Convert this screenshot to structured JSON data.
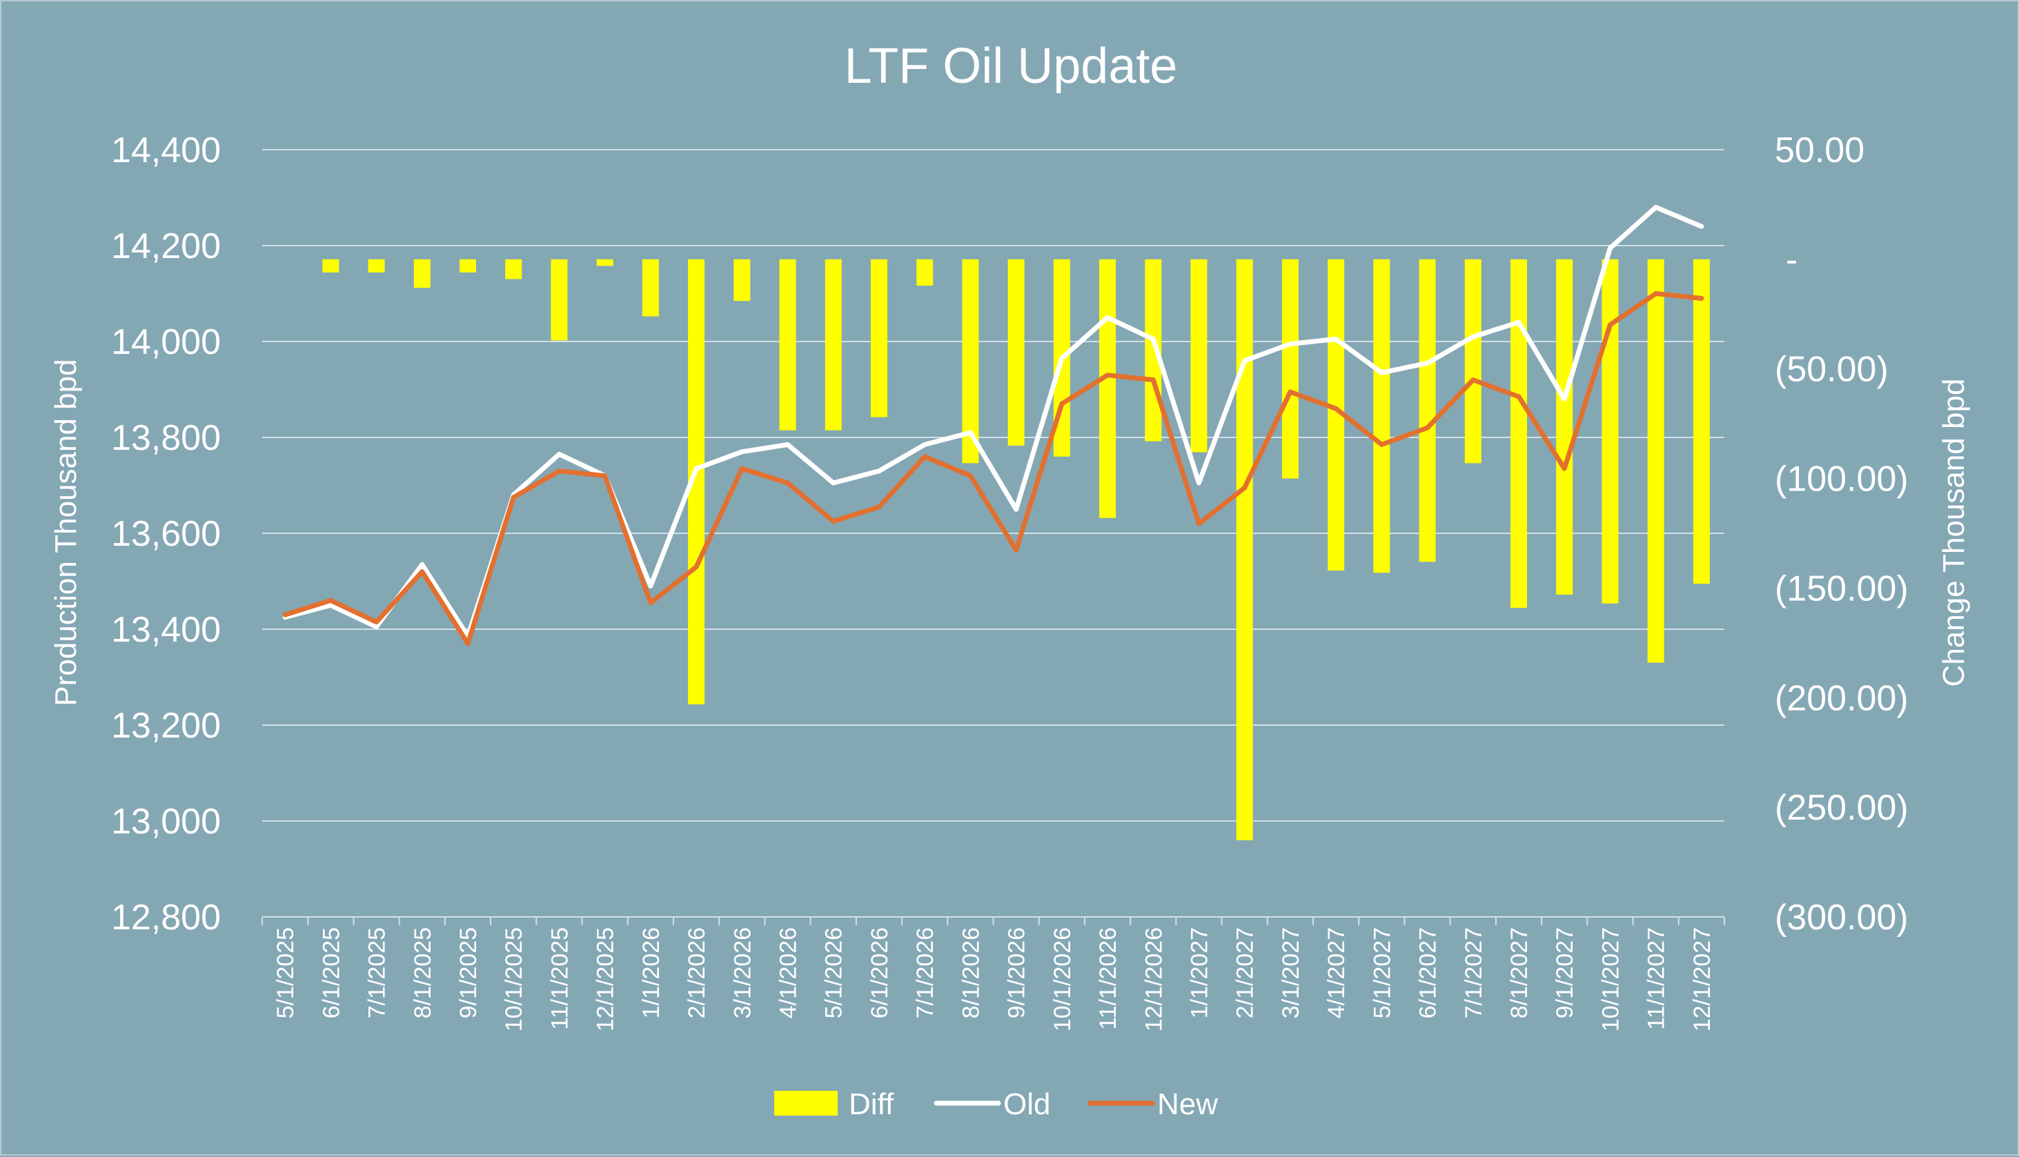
{
  "colors": {
    "background": "#84a7b4",
    "grid": "#d3e0e5",
    "diff": "#ffff00",
    "old": "#ffffff",
    "new": "#e2702f",
    "text": "#ffffff"
  },
  "chart_data": {
    "type": "bar+line",
    "title": "LTF Oil Update",
    "ylabel": "Production Thousand bpd",
    "y2label": "Change Thousand bpd",
    "ylim": [
      12800,
      14400
    ],
    "y_ticks": [
      12800,
      13000,
      13200,
      13400,
      13600,
      13800,
      14000,
      14200,
      14400
    ],
    "y_tick_labels": [
      "12,800",
      "13,000",
      "13,200",
      "13,400",
      "13,600",
      "13,800",
      "14,000",
      "14,200",
      "14,400"
    ],
    "y2lim": [
      -300,
      50
    ],
    "y2_ticks": [
      50,
      0,
      -50,
      -100,
      -150,
      -200,
      -250,
      -300
    ],
    "y2_tick_labels": [
      "50.00",
      "-",
      "(50.00)",
      "(100.00)",
      "(150.00)",
      "(200.00)",
      "(250.00)",
      "(300.00)"
    ],
    "categories": [
      "5/1/2025",
      "6/1/2025",
      "7/1/2025",
      "8/1/2025",
      "9/1/2025",
      "10/1/2025",
      "11/1/2025",
      "12/1/2025",
      "1/1/2026",
      "2/1/2026",
      "3/1/2026",
      "4/1/2026",
      "5/1/2026",
      "6/1/2026",
      "7/1/2026",
      "8/1/2026",
      "9/1/2026",
      "10/1/2026",
      "11/1/2026",
      "12/1/2026",
      "1/1/2027",
      "2/1/2027",
      "3/1/2027",
      "4/1/2027",
      "5/1/2027",
      "6/1/2027",
      "7/1/2027",
      "8/1/2027",
      "9/1/2027",
      "10/1/2027",
      "11/1/2027",
      "12/1/2027"
    ],
    "series": [
      {
        "name": "Diff",
        "type": "bar",
        "axis": "right",
        "values": [
          0,
          -6,
          -6,
          -13,
          -6,
          -9,
          -37,
          -3,
          -26,
          -203,
          -19,
          -78,
          -78,
          -72,
          -12,
          -93,
          -85,
          -90,
          -118,
          -83,
          -88,
          -265,
          -100,
          -142,
          -143,
          -138,
          -93,
          -159,
          -153,
          -157,
          -184,
          -148
        ]
      },
      {
        "name": "Old",
        "type": "line",
        "axis": "left",
        "values": [
          13425,
          13450,
          13405,
          13535,
          13385,
          13680,
          13765,
          13720,
          13490,
          13735,
          13770,
          13785,
          13705,
          13730,
          13785,
          13810,
          13650,
          13965,
          14050,
          14005,
          13705,
          13960,
          13995,
          14005,
          13935,
          13955,
          14010,
          14040,
          13880,
          14195,
          14280,
          14240
        ]
      },
      {
        "name": "New",
        "type": "line",
        "axis": "left",
        "values": [
          13430,
          13460,
          13415,
          13520,
          13370,
          13675,
          13730,
          13720,
          13455,
          13530,
          13735,
          13705,
          13625,
          13655,
          13760,
          13720,
          13565,
          13870,
          13930,
          13920,
          13620,
          13695,
          13895,
          13860,
          13785,
          13820,
          13920,
          13885,
          13735,
          14035,
          14100,
          14090
        ]
      }
    ],
    "legend": [
      "Diff",
      "Old",
      "New"
    ],
    "legend_position": "bottom",
    "grid": true
  }
}
